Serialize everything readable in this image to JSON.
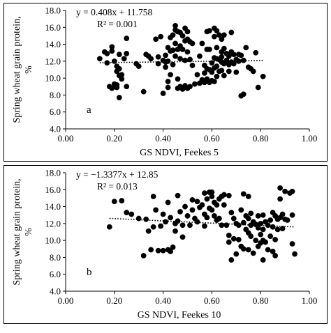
{
  "chart_data": [
    {
      "type": "scatter",
      "panel_label": "a",
      "xlabel": "GS NDVI, Feekes 5",
      "ylabel": "Spring wheat grain protein, %",
      "xlim": [
        0.0,
        1.0
      ],
      "ylim": [
        4.0,
        18.0
      ],
      "xticks": [
        "0.00",
        "0.20",
        "0.40",
        "0.60",
        "0.80",
        "1.00"
      ],
      "yticks": [
        "4.0",
        "6.0",
        "8.0",
        "10.0",
        "12.0",
        "14.0",
        "16.0",
        "18.0"
      ],
      "grid": false,
      "legend": "none",
      "equation": "y = 0.408x + 11.758",
      "r2": "R² = 0.001",
      "trendline": {
        "slope": 0.408,
        "intercept": 11.758,
        "x_range": [
          0.14,
          0.81
        ],
        "style": "dotted"
      },
      "points": [
        [
          0.14,
          12.3
        ],
        [
          0.16,
          13.1
        ],
        [
          0.17,
          12.9
        ],
        [
          0.17,
          11.8
        ],
        [
          0.18,
          9.0
        ],
        [
          0.19,
          13.7
        ],
        [
          0.19,
          13.2
        ],
        [
          0.19,
          8.8
        ],
        [
          0.2,
          9.3
        ],
        [
          0.2,
          12.0
        ],
        [
          0.21,
          11.4
        ],
        [
          0.21,
          10.8
        ],
        [
          0.21,
          9.2
        ],
        [
          0.21,
          8.9
        ],
        [
          0.22,
          12.8
        ],
        [
          0.22,
          11.1
        ],
        [
          0.22,
          10.3
        ],
        [
          0.22,
          7.7
        ],
        [
          0.23,
          9.9
        ],
        [
          0.23,
          10.4
        ],
        [
          0.24,
          12.3
        ],
        [
          0.25,
          14.7
        ],
        [
          0.25,
          12.9
        ],
        [
          0.25,
          9.0
        ],
        [
          0.29,
          11.7
        ],
        [
          0.3,
          11.4
        ],
        [
          0.32,
          8.4
        ],
        [
          0.33,
          12.8
        ],
        [
          0.34,
          12.6
        ],
        [
          0.35,
          12.3
        ],
        [
          0.37,
          14.6
        ],
        [
          0.38,
          12.5
        ],
        [
          0.38,
          11.7
        ],
        [
          0.39,
          14.9
        ],
        [
          0.4,
          8.2
        ],
        [
          0.4,
          12.1
        ],
        [
          0.41,
          12.7
        ],
        [
          0.41,
          11.9
        ],
        [
          0.41,
          11.3
        ],
        [
          0.42,
          13.6
        ],
        [
          0.42,
          12.0
        ],
        [
          0.42,
          9.6
        ],
        [
          0.42,
          8.9
        ],
        [
          0.43,
          14.8
        ],
        [
          0.43,
          13.2
        ],
        [
          0.43,
          10.4
        ],
        [
          0.44,
          15.1
        ],
        [
          0.44,
          13.3
        ],
        [
          0.44,
          11.6
        ],
        [
          0.45,
          16.2
        ],
        [
          0.45,
          15.7
        ],
        [
          0.45,
          14.1
        ],
        [
          0.45,
          12.6
        ],
        [
          0.46,
          15.5
        ],
        [
          0.46,
          13.4
        ],
        [
          0.46,
          9.9
        ],
        [
          0.46,
          8.8
        ],
        [
          0.47,
          15.4
        ],
        [
          0.47,
          13.8
        ],
        [
          0.47,
          12.3
        ],
        [
          0.47,
          9.0
        ],
        [
          0.48,
          15.0
        ],
        [
          0.48,
          13.4
        ],
        [
          0.48,
          8.7
        ],
        [
          0.49,
          15.9
        ],
        [
          0.49,
          14.4
        ],
        [
          0.49,
          12.1
        ],
        [
          0.49,
          9.1
        ],
        [
          0.5,
          14.6
        ],
        [
          0.5,
          15.5
        ],
        [
          0.5,
          13.1
        ],
        [
          0.5,
          8.8
        ],
        [
          0.51,
          14.3
        ],
        [
          0.51,
          12.2
        ],
        [
          0.51,
          9.0
        ],
        [
          0.52,
          14.1
        ],
        [
          0.52,
          11.5
        ],
        [
          0.53,
          9.3
        ],
        [
          0.54,
          10.4
        ],
        [
          0.55,
          12.6
        ],
        [
          0.55,
          9.4
        ],
        [
          0.56,
          14.1
        ],
        [
          0.56,
          9.8
        ],
        [
          0.57,
          11.5
        ],
        [
          0.57,
          10.6
        ],
        [
          0.57,
          9.5
        ],
        [
          0.58,
          13.4
        ],
        [
          0.58,
          9.9
        ],
        [
          0.58,
          15.5
        ],
        [
          0.58,
          11.1
        ],
        [
          0.59,
          15.6
        ],
        [
          0.59,
          13.4
        ],
        [
          0.59,
          11.0
        ],
        [
          0.59,
          9.5
        ],
        [
          0.6,
          11.8
        ],
        [
          0.6,
          10.7
        ],
        [
          0.6,
          9.7
        ],
        [
          0.61,
          15.9
        ],
        [
          0.61,
          14.9
        ],
        [
          0.61,
          12.4
        ],
        [
          0.61,
          11.2
        ],
        [
          0.61,
          9.6
        ],
        [
          0.62,
          15.6
        ],
        [
          0.62,
          13.6
        ],
        [
          0.62,
          12.3
        ],
        [
          0.62,
          11.4
        ],
        [
          0.62,
          10.2
        ],
        [
          0.63,
          15.1
        ],
        [
          0.63,
          12.2
        ],
        [
          0.63,
          10.8
        ],
        [
          0.64,
          14.6
        ],
        [
          0.64,
          13.1
        ],
        [
          0.64,
          12.5
        ],
        [
          0.64,
          11.9
        ],
        [
          0.64,
          10.9
        ],
        [
          0.65,
          15.1
        ],
        [
          0.65,
          13.5
        ],
        [
          0.65,
          11.7
        ],
        [
          0.65,
          10.3
        ],
        [
          0.66,
          12.9
        ],
        [
          0.66,
          12.1
        ],
        [
          0.67,
          12.6
        ],
        [
          0.67,
          11.6
        ],
        [
          0.67,
          10.8
        ],
        [
          0.68,
          15.4
        ],
        [
          0.68,
          13.1
        ],
        [
          0.68,
          11.9
        ],
        [
          0.69,
          12.8
        ],
        [
          0.69,
          11.7
        ],
        [
          0.7,
          12.2
        ],
        [
          0.7,
          10.7
        ],
        [
          0.71,
          12.8
        ],
        [
          0.71,
          12.0
        ],
        [
          0.72,
          12.7
        ],
        [
          0.72,
          7.9
        ],
        [
          0.73,
          12.1
        ],
        [
          0.73,
          8.1
        ],
        [
          0.74,
          13.6
        ],
        [
          0.75,
          11.3
        ],
        [
          0.76,
          11.1
        ],
        [
          0.77,
          10.8
        ],
        [
          0.78,
          13.0
        ],
        [
          0.79,
          8.9
        ],
        [
          0.81,
          10.2
        ]
      ]
    },
    {
      "type": "scatter",
      "panel_label": "b",
      "xlabel": "GS NDVI, Feekes 10",
      "ylabel": "Spring wheat grain protein, %",
      "xlim": [
        0.0,
        1.0
      ],
      "ylim": [
        4.0,
        18.0
      ],
      "xticks": [
        "0.00",
        "0.20",
        "0.40",
        "0.60",
        "0.80",
        "1.00"
      ],
      "yticks": [
        "4.0",
        "6.0",
        "8.0",
        "10.0",
        "12.0",
        "14.0",
        "16.0",
        "18.0"
      ],
      "grid": false,
      "legend": "none",
      "equation": "y = −1.3377x + 12.85",
      "r2": "R² = 0.013",
      "trendline": {
        "slope": -1.3377,
        "intercept": 12.85,
        "x_range": [
          0.18,
          0.94
        ],
        "style": "dotted"
      },
      "points": [
        [
          0.18,
          11.6
        ],
        [
          0.2,
          14.6
        ],
        [
          0.23,
          14.7
        ],
        [
          0.25,
          13.3
        ],
        [
          0.27,
          13.1
        ],
        [
          0.3,
          12.6
        ],
        [
          0.32,
          8.2
        ],
        [
          0.33,
          12.5
        ],
        [
          0.34,
          11.1
        ],
        [
          0.35,
          8.9
        ],
        [
          0.36,
          15.2
        ],
        [
          0.36,
          11.6
        ],
        [
          0.37,
          13.6
        ],
        [
          0.38,
          8.8
        ],
        [
          0.39,
          11.7
        ],
        [
          0.4,
          13.1
        ],
        [
          0.4,
          8.8
        ],
        [
          0.41,
          12.2
        ],
        [
          0.42,
          14.5
        ],
        [
          0.42,
          8.9
        ],
        [
          0.43,
          12.7
        ],
        [
          0.43,
          8.7
        ],
        [
          0.44,
          9.2
        ],
        [
          0.45,
          12.0
        ],
        [
          0.45,
          11.1
        ],
        [
          0.46,
          15.3
        ],
        [
          0.46,
          12.3
        ],
        [
          0.47,
          13.4
        ],
        [
          0.48,
          11.8
        ],
        [
          0.48,
          10.4
        ],
        [
          0.49,
          14.0
        ],
        [
          0.5,
          12.9
        ],
        [
          0.51,
          11.8
        ],
        [
          0.52,
          14.8
        ],
        [
          0.52,
          13.6
        ],
        [
          0.53,
          12.6
        ],
        [
          0.54,
          14.6
        ],
        [
          0.54,
          12.2
        ],
        [
          0.55,
          13.9
        ],
        [
          0.56,
          14.2
        ],
        [
          0.57,
          15.6
        ],
        [
          0.57,
          13.1
        ],
        [
          0.57,
          11.7
        ],
        [
          0.58,
          12.7
        ],
        [
          0.58,
          14.9
        ],
        [
          0.59,
          13.8
        ],
        [
          0.59,
          15.7
        ],
        [
          0.6,
          15.2
        ],
        [
          0.6,
          15.7
        ],
        [
          0.6,
          13.6
        ],
        [
          0.61,
          12.9
        ],
        [
          0.61,
          14.5
        ],
        [
          0.62,
          14.2
        ],
        [
          0.62,
          12.4
        ],
        [
          0.63,
          14.9
        ],
        [
          0.63,
          12.6
        ],
        [
          0.64,
          11.8
        ],
        [
          0.64,
          15.2
        ],
        [
          0.65,
          15.4
        ],
        [
          0.65,
          14.2
        ],
        [
          0.66,
          11.8
        ],
        [
          0.67,
          15.3
        ],
        [
          0.67,
          9.8
        ],
        [
          0.67,
          10.6
        ],
        [
          0.68,
          7.7
        ],
        [
          0.68,
          13.3
        ],
        [
          0.69,
          12.6
        ],
        [
          0.69,
          10.2
        ],
        [
          0.7,
          12.0
        ],
        [
          0.7,
          8.4
        ],
        [
          0.71,
          11.8
        ],
        [
          0.71,
          10.1
        ],
        [
          0.72,
          13.6
        ],
        [
          0.72,
          9.3
        ],
        [
          0.73,
          15.5
        ],
        [
          0.73,
          12.1
        ],
        [
          0.73,
          9.0
        ],
        [
          0.74,
          12.9
        ],
        [
          0.74,
          11.3
        ],
        [
          0.75,
          15.2
        ],
        [
          0.75,
          12.6
        ],
        [
          0.75,
          10.9
        ],
        [
          0.75,
          8.9
        ],
        [
          0.76,
          13.2
        ],
        [
          0.76,
          11.8
        ],
        [
          0.76,
          10.5
        ],
        [
          0.77,
          12.2
        ],
        [
          0.77,
          8.5
        ],
        [
          0.78,
          11.9
        ],
        [
          0.78,
          10.0
        ],
        [
          0.79,
          12.9
        ],
        [
          0.79,
          11.5
        ],
        [
          0.79,
          9.3
        ],
        [
          0.8,
          12.0
        ],
        [
          0.8,
          10.7
        ],
        [
          0.8,
          9.7
        ],
        [
          0.81,
          13.0
        ],
        [
          0.81,
          11.3
        ],
        [
          0.81,
          7.7
        ],
        [
          0.81,
          10.0
        ],
        [
          0.82,
          12.2
        ],
        [
          0.82,
          9.8
        ],
        [
          0.83,
          11.8
        ],
        [
          0.83,
          8.9
        ],
        [
          0.84,
          12.4
        ],
        [
          0.84,
          10.5
        ],
        [
          0.85,
          13.3
        ],
        [
          0.85,
          11.6
        ],
        [
          0.85,
          8.7
        ],
        [
          0.86,
          12.9
        ],
        [
          0.86,
          10.1
        ],
        [
          0.86,
          8.2
        ],
        [
          0.87,
          12.5
        ],
        [
          0.87,
          11.3
        ],
        [
          0.88,
          14.9
        ],
        [
          0.88,
          16.2
        ],
        [
          0.88,
          12.7
        ],
        [
          0.89,
          13.1
        ],
        [
          0.89,
          11.4
        ],
        [
          0.9,
          15.8
        ],
        [
          0.9,
          12.5
        ],
        [
          0.91,
          12.4
        ],
        [
          0.92,
          15.6
        ],
        [
          0.93,
          15.8
        ],
        [
          0.93,
          13.0
        ],
        [
          0.93,
          9.6
        ],
        [
          0.94,
          8.4
        ]
      ]
    }
  ]
}
